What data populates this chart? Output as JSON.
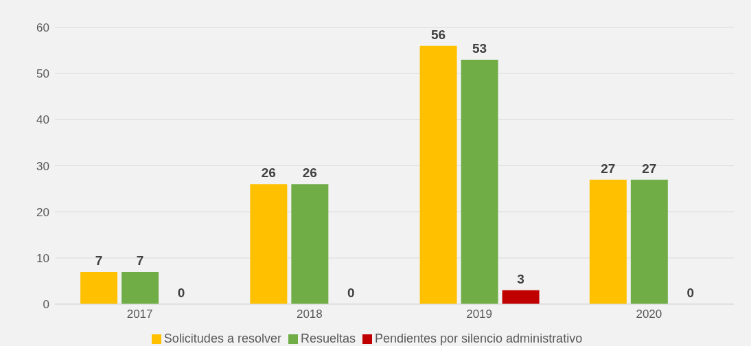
{
  "chart_data": {
    "type": "bar",
    "categories": [
      "2017",
      "2018",
      "2019",
      "2020"
    ],
    "series": [
      {
        "name": "Solicitudes a resolver",
        "color": "#ffc000",
        "values": [
          7,
          26,
          56,
          27
        ]
      },
      {
        "name": "Resueltas",
        "color": "#70ad47",
        "values": [
          7,
          26,
          53,
          27
        ]
      },
      {
        "name": "Pendientes por silencio administrativo",
        "color": "#c00000",
        "values": [
          0,
          0,
          3,
          0
        ]
      }
    ],
    "ylim": [
      0,
      60
    ],
    "yticks": [
      0,
      10,
      20,
      30,
      40,
      50,
      60
    ],
    "grid": "y",
    "legend": "bottom",
    "data_labels": true
  }
}
